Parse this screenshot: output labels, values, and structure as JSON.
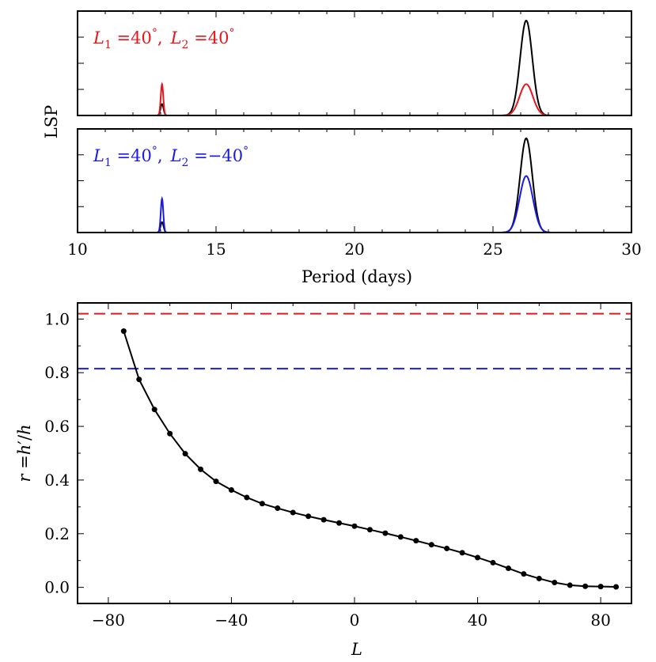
{
  "chart_data": [
    {
      "type": "line",
      "panel": "top",
      "title": "",
      "annotation": {
        "l1_symbol": "L",
        "l1_sub": "1",
        "l1_eq": " =",
        "l1_val": "40",
        "deg": "°",
        "sep": ",",
        "l2_symbol": "L",
        "l2_sub": "2",
        "l2_eq": " =",
        "l2_val": "40",
        "deg2": "°",
        "color": "#e8161c"
      },
      "ylabel": "LSP",
      "xlim": [
        10,
        30
      ],
      "ylim": [
        0,
        1.1
      ],
      "series": [
        {
          "name": "black",
          "color": "#000000",
          "peaks": [
            {
              "x": 13.05,
              "height": 0.12,
              "sigma": 0.055
            },
            {
              "x": 26.2,
              "height": 1.0,
              "sigma": 0.22
            }
          ]
        },
        {
          "name": "red",
          "color": "#e8161c",
          "peaks": [
            {
              "x": 13.05,
              "height": 0.33,
              "sigma": 0.045
            },
            {
              "x": 26.2,
              "height": 0.33,
              "sigma": 0.24
            }
          ]
        }
      ]
    },
    {
      "type": "line",
      "panel": "middle",
      "annotation": {
        "l1_symbol": "L",
        "l1_sub": "1",
        "l1_eq": " =",
        "l1_val": "40",
        "deg": "°",
        "sep": ",",
        "l2_symbol": "L",
        "l2_sub": "2",
        "l2_eq": " =",
        "l2_val": "−40",
        "deg2": "°",
        "color": "#1a1ae6"
      },
      "xlabel": "Period (days)",
      "xlim": [
        10,
        30
      ],
      "ylim": [
        0,
        1.1
      ],
      "xticks": [
        "10",
        "15",
        "20",
        "25",
        "30"
      ],
      "xtick_values": [
        10,
        15,
        20,
        25,
        30
      ],
      "series": [
        {
          "name": "black",
          "color": "#000000",
          "peaks": [
            {
              "x": 13.05,
              "height": 0.11,
              "sigma": 0.055
            },
            {
              "x": 26.2,
              "height": 1.0,
              "sigma": 0.22
            }
          ]
        },
        {
          "name": "blue",
          "color": "#1a1ae6",
          "peaks": [
            {
              "x": 13.05,
              "height": 0.36,
              "sigma": 0.045
            },
            {
              "x": 26.2,
              "height": 0.6,
              "sigma": 0.24
            }
          ]
        }
      ]
    },
    {
      "type": "line",
      "panel": "bottom",
      "xlabel": "L",
      "ylabel": {
        "r": "r",
        "eq": " =",
        "h1": "h",
        "prime": "′",
        "slash": "/",
        "h2": "h"
      },
      "xlim": [
        -90,
        90
      ],
      "ylim": [
        -0.06,
        1.06
      ],
      "xticks": [
        "−80",
        "−40",
        "0",
        "40",
        "80"
      ],
      "xtick_values": [
        -80,
        -40,
        0,
        40,
        80
      ],
      "yticks": [
        "0.0",
        "0.2",
        "0.4",
        "0.6",
        "0.8",
        "1.0"
      ],
      "ytick_values": [
        0.0,
        0.2,
        0.4,
        0.6,
        0.8,
        1.0
      ],
      "hlines": [
        {
          "y": 1.02,
          "color": "#e8161c",
          "style": "dashed"
        },
        {
          "y": 0.815,
          "color": "#1a1ae6",
          "style": "dashed"
        }
      ],
      "series": [
        {
          "name": "r",
          "color": "#000000",
          "marker": "circle",
          "x": [
            -75,
            -70,
            -65,
            -60,
            -55,
            -50,
            -45,
            -40,
            -35,
            -30,
            -25,
            -20,
            -15,
            -10,
            -5,
            0,
            5,
            10,
            15,
            20,
            25,
            30,
            35,
            40,
            45,
            50,
            55,
            60,
            65,
            70,
            75,
            80,
            85
          ],
          "y": [
            0.955,
            0.775,
            0.663,
            0.573,
            0.498,
            0.44,
            0.395,
            0.363,
            0.335,
            0.312,
            0.295,
            0.279,
            0.265,
            0.252,
            0.24,
            0.228,
            0.215,
            0.202,
            0.188,
            0.174,
            0.159,
            0.145,
            0.129,
            0.111,
            0.092,
            0.071,
            0.05,
            0.033,
            0.018,
            0.008,
            0.004,
            0.003,
            0.002
          ]
        }
      ]
    }
  ]
}
